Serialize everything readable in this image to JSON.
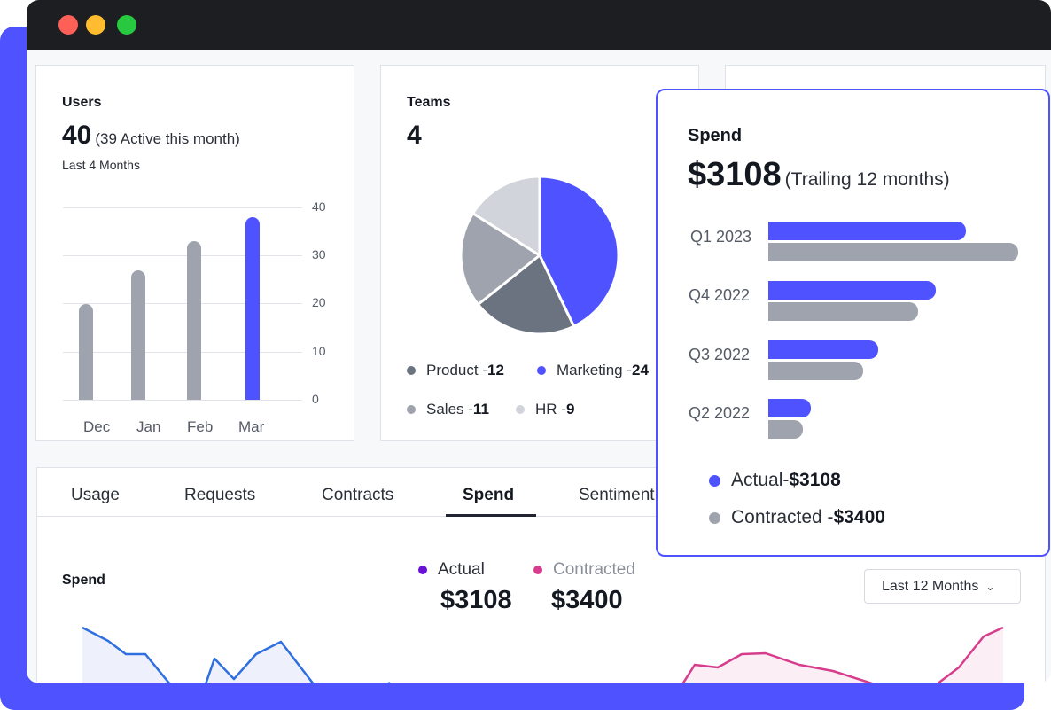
{
  "users": {
    "title": "Users",
    "count": "40",
    "active_note": "(39 Active this month)",
    "period": "Last 4 Months",
    "y_ticks": [
      "40",
      "30",
      "20",
      "10",
      "0"
    ],
    "bars": [
      {
        "label": "Dec",
        "value": 20
      },
      {
        "label": "Jan",
        "value": 27
      },
      {
        "label": "Feb",
        "value": 33
      },
      {
        "label": "Mar",
        "value": 38
      }
    ]
  },
  "teams": {
    "title": "Teams",
    "count": "4",
    "slices": [
      {
        "name": "Product",
        "value": 12
      },
      {
        "name": "Marketing",
        "value": 24
      },
      {
        "name": "Sales",
        "value": 11
      },
      {
        "name": "HR",
        "value": 9
      }
    ],
    "legend": [
      {
        "label": "Product - ",
        "value": "12"
      },
      {
        "label": "Marketing - ",
        "value": "24"
      },
      {
        "label": "Sales - ",
        "value": "11"
      },
      {
        "label": "HR - ",
        "value": "9"
      }
    ]
  },
  "tabs": [
    "Usage",
    "Requests",
    "Contracts",
    "Spend",
    "Sentiment"
  ],
  "spend_section": {
    "title": "Spend",
    "actual_label": "Actual",
    "actual_value": "$3108",
    "contracted_label": "Contracted",
    "contracted_value": "$3400",
    "range_select": "Last 12 Months"
  },
  "spend_popup": {
    "title": "Spend",
    "amount": "$3108",
    "note": "(Trailing 12 months)",
    "quarters": [
      {
        "label": "Q1 2023",
        "actual": 0.79,
        "contracted": 1.0
      },
      {
        "label": "Q4 2022",
        "actual": 0.67,
        "contracted": 0.6
      },
      {
        "label": "Q3 2022",
        "actual": 0.44,
        "contracted": 0.38
      },
      {
        "label": "Q2 2022",
        "actual": 0.17,
        "contracted": 0.14
      }
    ],
    "legend_actual_label": "Actual- ",
    "legend_actual_value": "$3108",
    "legend_contracted_label": "Contracted - ",
    "legend_contracted_value": "$3400"
  },
  "colors": {
    "accent": "#4f52ff",
    "gray": "#9ea3ad",
    "dark_gray": "#6b7280",
    "light_gray": "#d1d4da",
    "actual_dot": "#6a11d6",
    "contracted_dot": "#d63d8c",
    "actual_line": "#2f6fe0",
    "contracted_line": "#d63d8c"
  }
}
